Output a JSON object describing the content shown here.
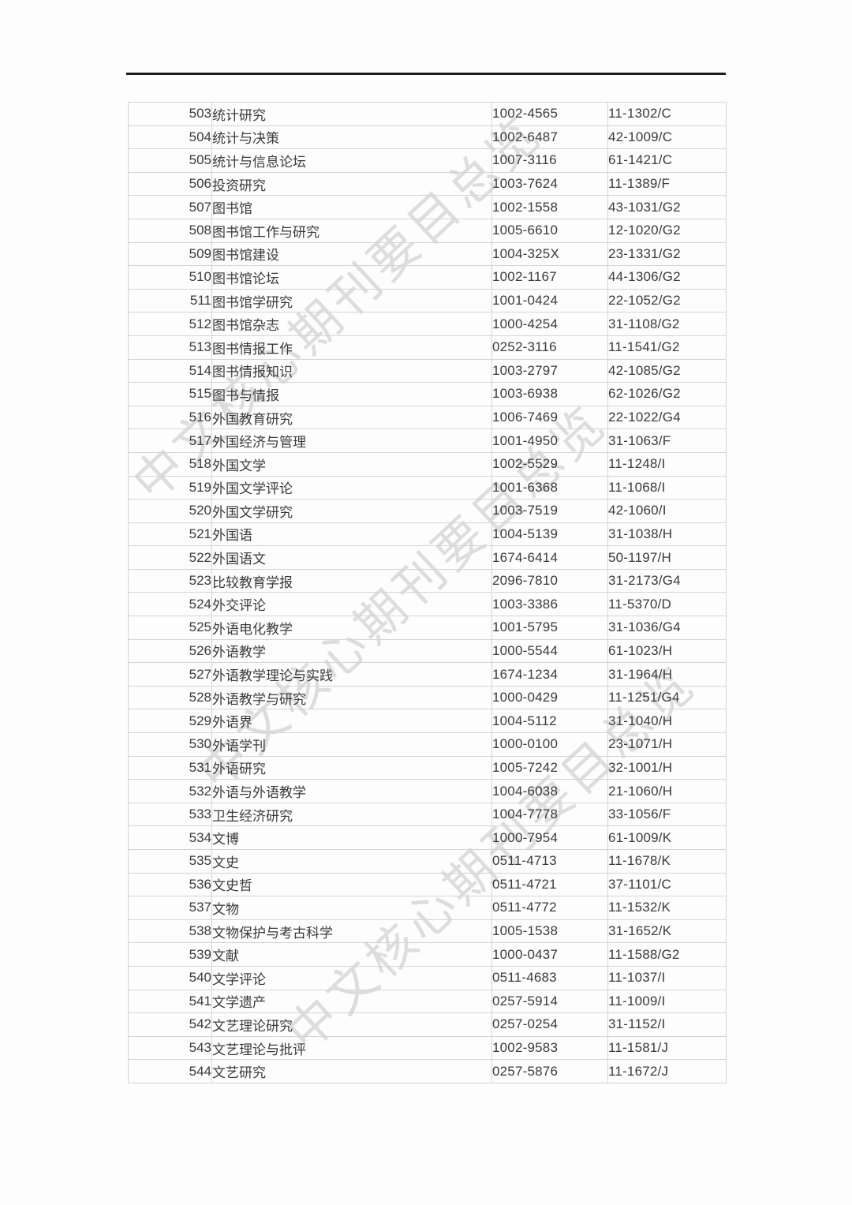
{
  "watermark": {
    "text": "中文核心期刊要目总览",
    "color": "#c3c3c3"
  },
  "colors": {
    "top_rule": "#1b1b1b",
    "table_border": "#d4d4d4",
    "text": "#3a3a3a",
    "background": "#fdfdfd"
  },
  "rows": [
    {
      "no": "503",
      "name": "统计研究",
      "issn": "1002-4565",
      "cn": "11-1302/C"
    },
    {
      "no": "504",
      "name": "统计与决策",
      "issn": "1002-6487",
      "cn": "42-1009/C"
    },
    {
      "no": "505",
      "name": "统计与信息论坛",
      "issn": "1007-3116",
      "cn": "61-1421/C"
    },
    {
      "no": "506",
      "name": "投资研究",
      "issn": "1003-7624",
      "cn": "11-1389/F"
    },
    {
      "no": "507",
      "name": "图书馆",
      "issn": "1002-1558",
      "cn": "43-1031/G2"
    },
    {
      "no": "508",
      "name": "图书馆工作与研究",
      "issn": "1005-6610",
      "cn": "12-1020/G2"
    },
    {
      "no": "509",
      "name": "图书馆建设",
      "issn": "1004-325X",
      "cn": "23-1331/G2"
    },
    {
      "no": "510",
      "name": "图书馆论坛",
      "issn": "1002-1167",
      "cn": "44-1306/G2"
    },
    {
      "no": "511",
      "name": "图书馆学研究",
      "issn": "1001-0424",
      "cn": "22-1052/G2"
    },
    {
      "no": "512",
      "name": "图书馆杂志",
      "issn": "1000-4254",
      "cn": "31-1108/G2"
    },
    {
      "no": "513",
      "name": "图书情报工作",
      "issn": "0252-3116",
      "cn": "11-1541/G2"
    },
    {
      "no": "514",
      "name": "图书情报知识",
      "issn": "1003-2797",
      "cn": "42-1085/G2"
    },
    {
      "no": "515",
      "name": "图书与情报",
      "issn": "1003-6938",
      "cn": "62-1026/G2"
    },
    {
      "no": "516",
      "name": "外国教育研究",
      "issn": "1006-7469",
      "cn": "22-1022/G4"
    },
    {
      "no": "517",
      "name": "外国经济与管理",
      "issn": "1001-4950",
      "cn": "31-1063/F"
    },
    {
      "no": "518",
      "name": "外国文学",
      "issn": "1002-5529",
      "cn": "11-1248/I"
    },
    {
      "no": "519",
      "name": "外国文学评论",
      "issn": "1001-6368",
      "cn": "11-1068/I"
    },
    {
      "no": "520",
      "name": "外国文学研究",
      "issn": "1003-7519",
      "cn": "42-1060/I"
    },
    {
      "no": "521",
      "name": "外国语",
      "issn": "1004-5139",
      "cn": "31-1038/H"
    },
    {
      "no": "522",
      "name": "外国语文",
      "issn": "1674-6414",
      "cn": "50-1197/H"
    },
    {
      "no": "523",
      "name": "比较教育学报",
      "issn": "2096-7810",
      "cn": "31-2173/G4"
    },
    {
      "no": "524",
      "name": "外交评论",
      "issn": "1003-3386",
      "cn": "11-5370/D"
    },
    {
      "no": "525",
      "name": "外语电化教学",
      "issn": "1001-5795",
      "cn": "31-1036/G4"
    },
    {
      "no": "526",
      "name": "外语教学",
      "issn": "1000-5544",
      "cn": "61-1023/H"
    },
    {
      "no": "527",
      "name": "外语教学理论与实践",
      "issn": "1674-1234",
      "cn": "31-1964/H"
    },
    {
      "no": "528",
      "name": "外语教学与研究",
      "issn": "1000-0429",
      "cn": "11-1251/G4"
    },
    {
      "no": "529",
      "name": "外语界",
      "issn": "1004-5112",
      "cn": "31-1040/H"
    },
    {
      "no": "530",
      "name": "外语学刊",
      "issn": "1000-0100",
      "cn": "23-1071/H"
    },
    {
      "no": "531",
      "name": "外语研究",
      "issn": "1005-7242",
      "cn": "32-1001/H"
    },
    {
      "no": "532",
      "name": "外语与外语教学",
      "issn": "1004-6038",
      "cn": "21-1060/H"
    },
    {
      "no": "533",
      "name": "卫生经济研究",
      "issn": "1004-7778",
      "cn": "33-1056/F"
    },
    {
      "no": "534",
      "name": "文博",
      "issn": "1000-7954",
      "cn": "61-1009/K"
    },
    {
      "no": "535",
      "name": "文史",
      "issn": "0511-4713",
      "cn": "11-1678/K"
    },
    {
      "no": "536",
      "name": "文史哲",
      "issn": "0511-4721",
      "cn": "37-1101/C"
    },
    {
      "no": "537",
      "name": "文物",
      "issn": "0511-4772",
      "cn": "11-1532/K"
    },
    {
      "no": "538",
      "name": "文物保护与考古科学",
      "issn": "1005-1538",
      "cn": "31-1652/K"
    },
    {
      "no": "539",
      "name": "文献",
      "issn": "1000-0437",
      "cn": "11-1588/G2"
    },
    {
      "no": "540",
      "name": "文学评论",
      "issn": "0511-4683",
      "cn": "11-1037/I"
    },
    {
      "no": "541",
      "name": "文学遗产",
      "issn": "0257-5914",
      "cn": "11-1009/I"
    },
    {
      "no": "542",
      "name": "文艺理论研究",
      "issn": "0257-0254",
      "cn": "31-1152/I"
    },
    {
      "no": "543",
      "name": "文艺理论与批评",
      "issn": "1002-9583",
      "cn": "11-1581/J"
    },
    {
      "no": "544",
      "name": "文艺研究",
      "issn": "0257-5876",
      "cn": "11-1672/J"
    }
  ]
}
